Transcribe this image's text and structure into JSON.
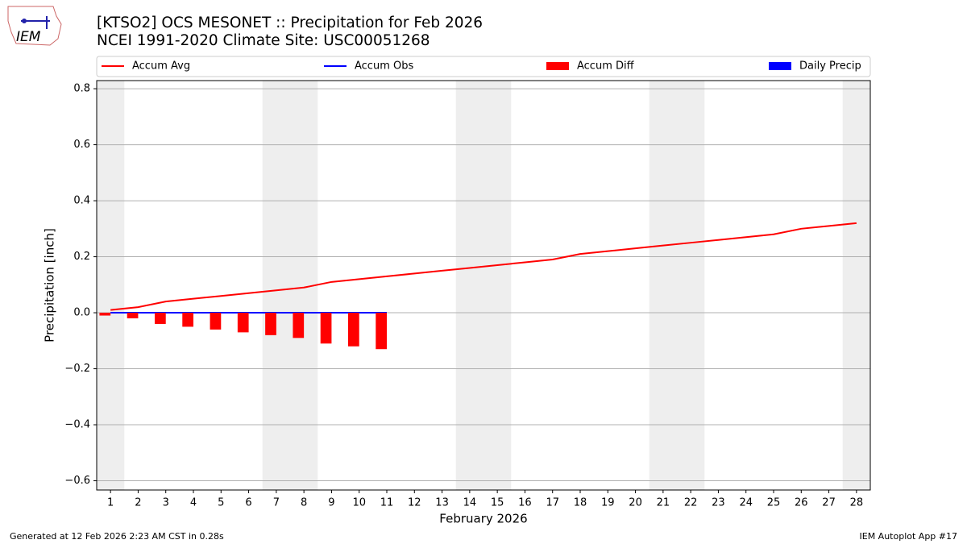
{
  "logo_text": "IEM",
  "footer": {
    "left": "Generated at 12 Feb 2026 2:23 AM CST in 0.28s",
    "right": "IEM Autoplot App #17"
  },
  "chart_data": {
    "type": "combo",
    "title": "[KTSO2] OCS MESONET :: Precipitation for Feb 2026",
    "subtitle": "NCEI 1991-2020 Climate Site: USC00051268",
    "xlabel": "February 2026",
    "ylabel": "Precipitation [inch]",
    "x": [
      1,
      2,
      3,
      4,
      5,
      6,
      7,
      8,
      9,
      10,
      11,
      12,
      13,
      14,
      15,
      16,
      17,
      18,
      19,
      20,
      21,
      22,
      23,
      24,
      25,
      26,
      27,
      28
    ],
    "xlim": [
      0.5,
      28.5
    ],
    "xticks": [
      1,
      2,
      3,
      4,
      5,
      6,
      7,
      8,
      9,
      10,
      11,
      12,
      13,
      14,
      15,
      16,
      17,
      18,
      19,
      20,
      21,
      22,
      23,
      24,
      25,
      26,
      27,
      28
    ],
    "ylim": [
      -0.633,
      0.829
    ],
    "yticks": [
      {
        "value": -0.6,
        "label": "−0.6"
      },
      {
        "value": -0.4,
        "label": "−0.4"
      },
      {
        "value": -0.2,
        "label": "−0.2"
      },
      {
        "value": 0,
        "label": "0.0"
      },
      0.2,
      0.4,
      0.6,
      0.8
    ],
    "grid": true,
    "legend": "top",
    "shaded_spans": [
      [
        0.5,
        1.5
      ],
      [
        6.5,
        8.5
      ],
      [
        13.5,
        15.5
      ],
      [
        20.5,
        22.5
      ],
      [
        27.5,
        28.5
      ]
    ],
    "shade_color": "#eeeeee",
    "series": [
      {
        "name": "Accum Avg",
        "kind": "line",
        "color": "#ff0000",
        "values": [
          0.01,
          0.02,
          0.04,
          0.05,
          0.06,
          0.07,
          0.08,
          0.09,
          0.11,
          0.12,
          0.13,
          0.14,
          0.15,
          0.16,
          0.17,
          0.18,
          0.19,
          0.21,
          0.22,
          0.23,
          0.24,
          0.25,
          0.26,
          0.27,
          0.28,
          0.3,
          0.31,
          0.32
        ]
      },
      {
        "name": "Accum Obs",
        "kind": "line",
        "color": "#0000ff",
        "values": [
          0,
          0,
          0,
          0,
          0,
          0,
          0,
          0,
          0,
          0,
          0,
          null,
          null,
          null,
          null,
          null,
          null,
          null,
          null,
          null,
          null,
          null,
          null,
          null,
          null,
          null,
          null,
          null
        ]
      },
      {
        "name": "Accum Diff",
        "kind": "bar",
        "color": "#ff0000",
        "values": [
          -0.01,
          -0.02,
          -0.04,
          -0.05,
          -0.06,
          -0.07,
          -0.08,
          -0.09,
          -0.11,
          -0.12,
          -0.13,
          null,
          null,
          null,
          null,
          null,
          null,
          null,
          null,
          null,
          null,
          null,
          null,
          null,
          null,
          null,
          null,
          null
        ]
      },
      {
        "name": "Daily Precip",
        "kind": "bar",
        "color": "#0000ff",
        "values": [
          0,
          0,
          0,
          0,
          0,
          0,
          0,
          0,
          0,
          0,
          0,
          null,
          null,
          null,
          null,
          null,
          null,
          null,
          null,
          null,
          null,
          null,
          null,
          null,
          null,
          null,
          null,
          null
        ]
      }
    ]
  }
}
